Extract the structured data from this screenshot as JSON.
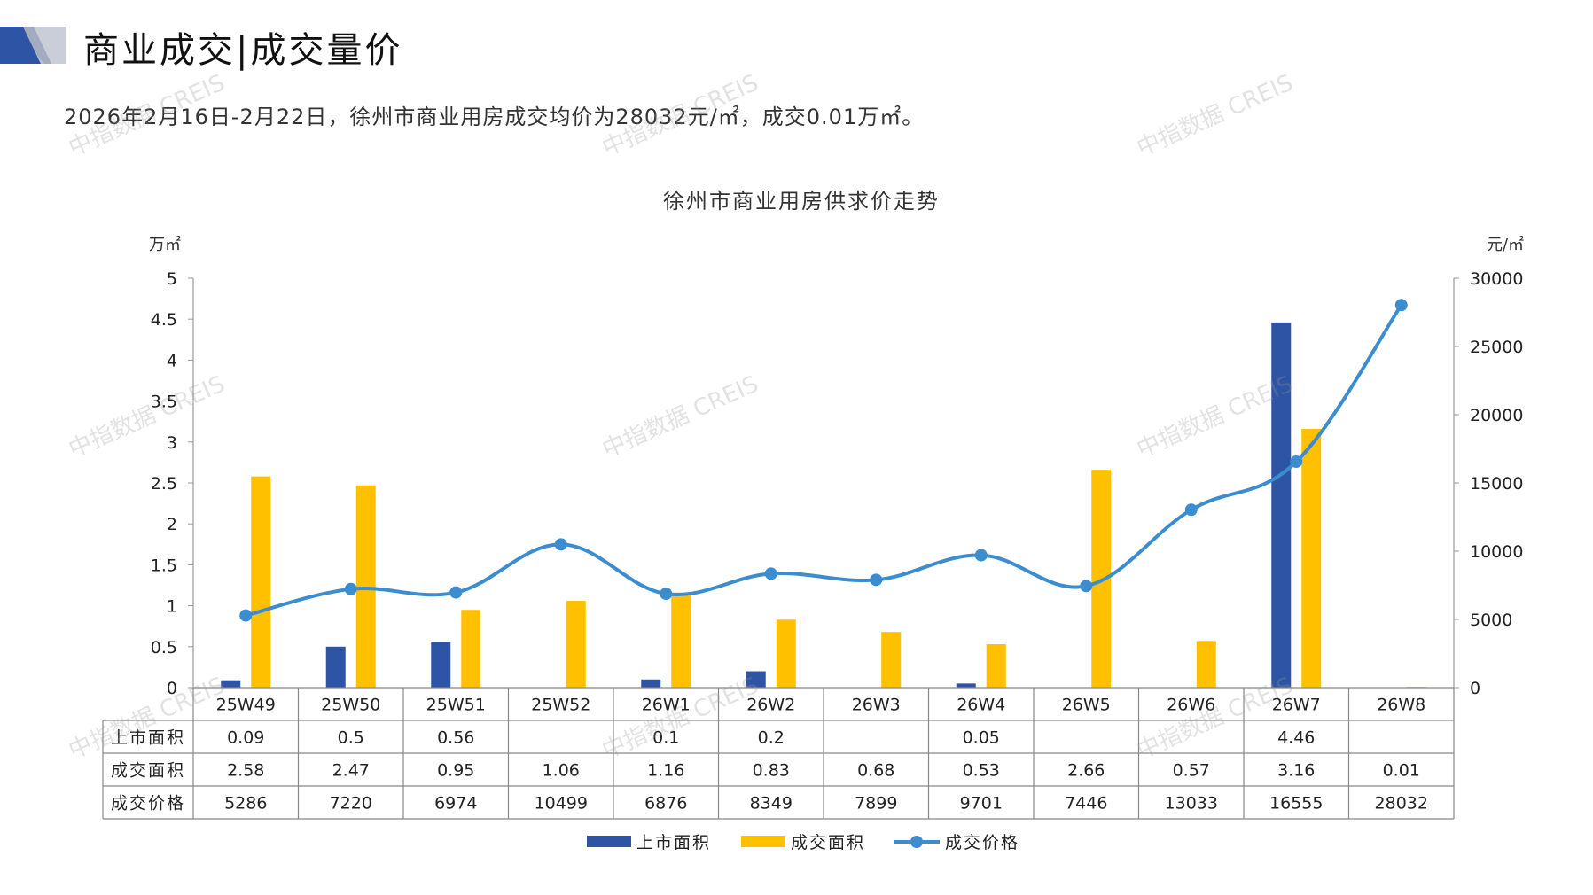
{
  "header": {
    "title": "商业成交|成交量价",
    "subtitle": "2026年2月16日-2月22日，徐州市商业用房成交均价为28032元/㎡，成交0.01万㎡。"
  },
  "watermark": "中指数据 CREIS",
  "colors": {
    "supply": "#2E54A5",
    "deal_area": "#FFC000",
    "price": "#3C8DD0",
    "deco_dark": "#2E54A5",
    "deco_light": "#C9CED8"
  },
  "chart_data": {
    "type": "bar+line",
    "title": "徐州市商业用房供求价走势",
    "y_left_unit": "万㎡",
    "y_right_unit": "元/㎡",
    "y_left_range": [
      0,
      5
    ],
    "y_right_range": [
      0,
      30000
    ],
    "y_left_ticks": [
      "0",
      "0.5",
      "1",
      "1.5",
      "2",
      "2.5",
      "3",
      "3.5",
      "4",
      "4.5",
      "5"
    ],
    "y_right_ticks": [
      "0",
      "5000",
      "10000",
      "15000",
      "20000",
      "25000",
      "30000"
    ],
    "categories": [
      "25W49",
      "25W50",
      "25W51",
      "25W52",
      "26W1",
      "26W2",
      "26W3",
      "26W4",
      "26W5",
      "26W6",
      "26W7",
      "26W8"
    ],
    "series": [
      {
        "name": "上市面积",
        "type": "bar",
        "axis": "left",
        "values": [
          0.09,
          0.5,
          0.56,
          null,
          0.1,
          0.2,
          null,
          0.05,
          null,
          null,
          4.46,
          null
        ],
        "labels": [
          "0.09",
          "0.5",
          "0.56",
          "",
          "0.1",
          "0.2",
          "",
          "0.05",
          "",
          "",
          "4.46",
          ""
        ]
      },
      {
        "name": "成交面积",
        "type": "bar",
        "axis": "left",
        "values": [
          2.58,
          2.47,
          0.95,
          1.06,
          1.16,
          0.83,
          0.68,
          0.53,
          2.66,
          0.57,
          3.16,
          0.01
        ],
        "labels": [
          "2.58",
          "2.47",
          "0.95",
          "1.06",
          "1.16",
          "0.83",
          "0.68",
          "0.53",
          "2.66",
          "0.57",
          "3.16",
          "0.01"
        ]
      },
      {
        "name": "成交价格",
        "type": "line",
        "axis": "right",
        "values": [
          5286,
          7220,
          6974,
          10499,
          6876,
          8349,
          7899,
          9701,
          7446,
          13033,
          16555,
          28032
        ],
        "labels": [
          "5286",
          "7220",
          "6974",
          "10499",
          "6876",
          "8349",
          "7899",
          "9701",
          "7446",
          "13033",
          "16555",
          "28032"
        ]
      }
    ],
    "legend_position": "bottom"
  }
}
